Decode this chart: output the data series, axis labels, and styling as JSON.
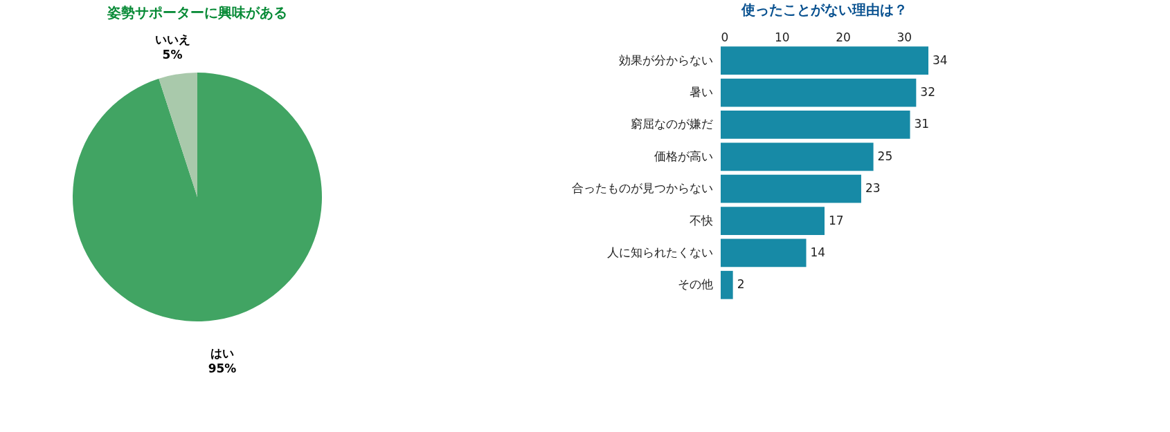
{
  "chart_data": [
    {
      "type": "pie",
      "title": "姿勢サポーターに興味がある",
      "categories": [
        "はい",
        "いいえ"
      ],
      "values": [
        95,
        5
      ],
      "colors": [
        "#41a463",
        "#a9c9ab"
      ],
      "value_labels": [
        "95%",
        "5%"
      ],
      "legend": false
    },
    {
      "type": "bar",
      "orientation": "horizontal",
      "title": "使ったことがない理由は？",
      "categories": [
        "効果が分からない",
        "暑い",
        "窮屈なのが嫌だ",
        "価格が高い",
        "合ったものが見つからない",
        "不快",
        "人に知られたくない",
        "その他"
      ],
      "values": [
        34,
        32,
        31,
        25,
        23,
        17,
        14,
        2
      ],
      "color": "#178aa6",
      "xlim": [
        0,
        34
      ],
      "xticks": [
        0,
        10,
        20,
        30
      ],
      "data_labels": true,
      "grid": false
    }
  ]
}
